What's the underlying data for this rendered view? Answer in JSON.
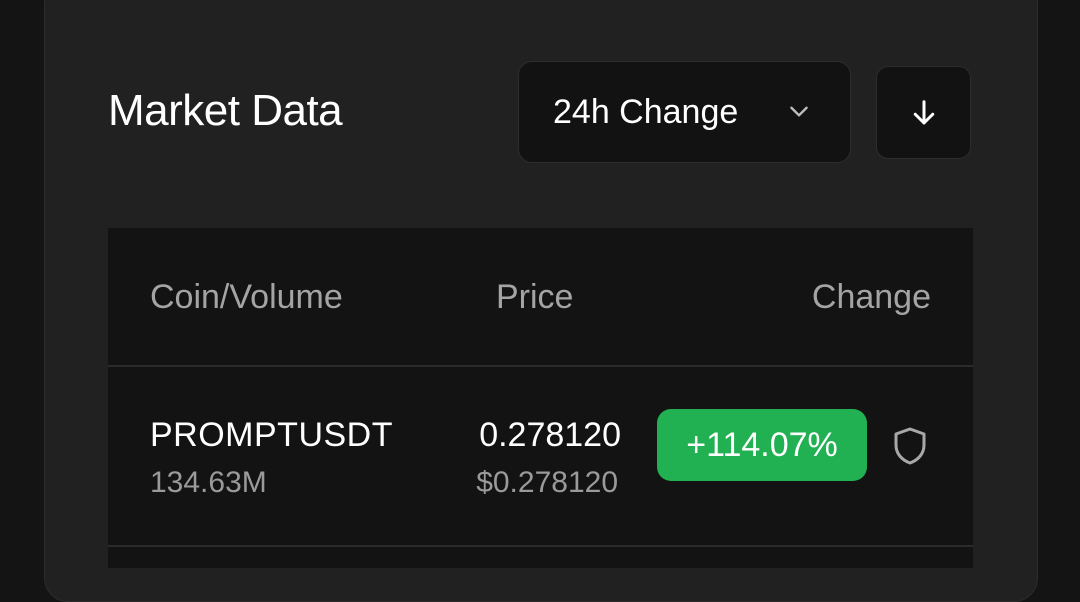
{
  "header": {
    "title": "Market Data"
  },
  "sort": {
    "selected": "24h Change",
    "direction_icon": "arrow-down-icon"
  },
  "table": {
    "columns": [
      "Coin/Volume",
      "Price",
      "Change"
    ],
    "rows": [
      {
        "symbol": "PROMPTUSDT",
        "volume": "134.63M",
        "price": "0.278120",
        "price_usd": "$0.278120",
        "change": "+114.07%",
        "badge_color": "#21b052",
        "icon": "shield-icon"
      }
    ]
  }
}
